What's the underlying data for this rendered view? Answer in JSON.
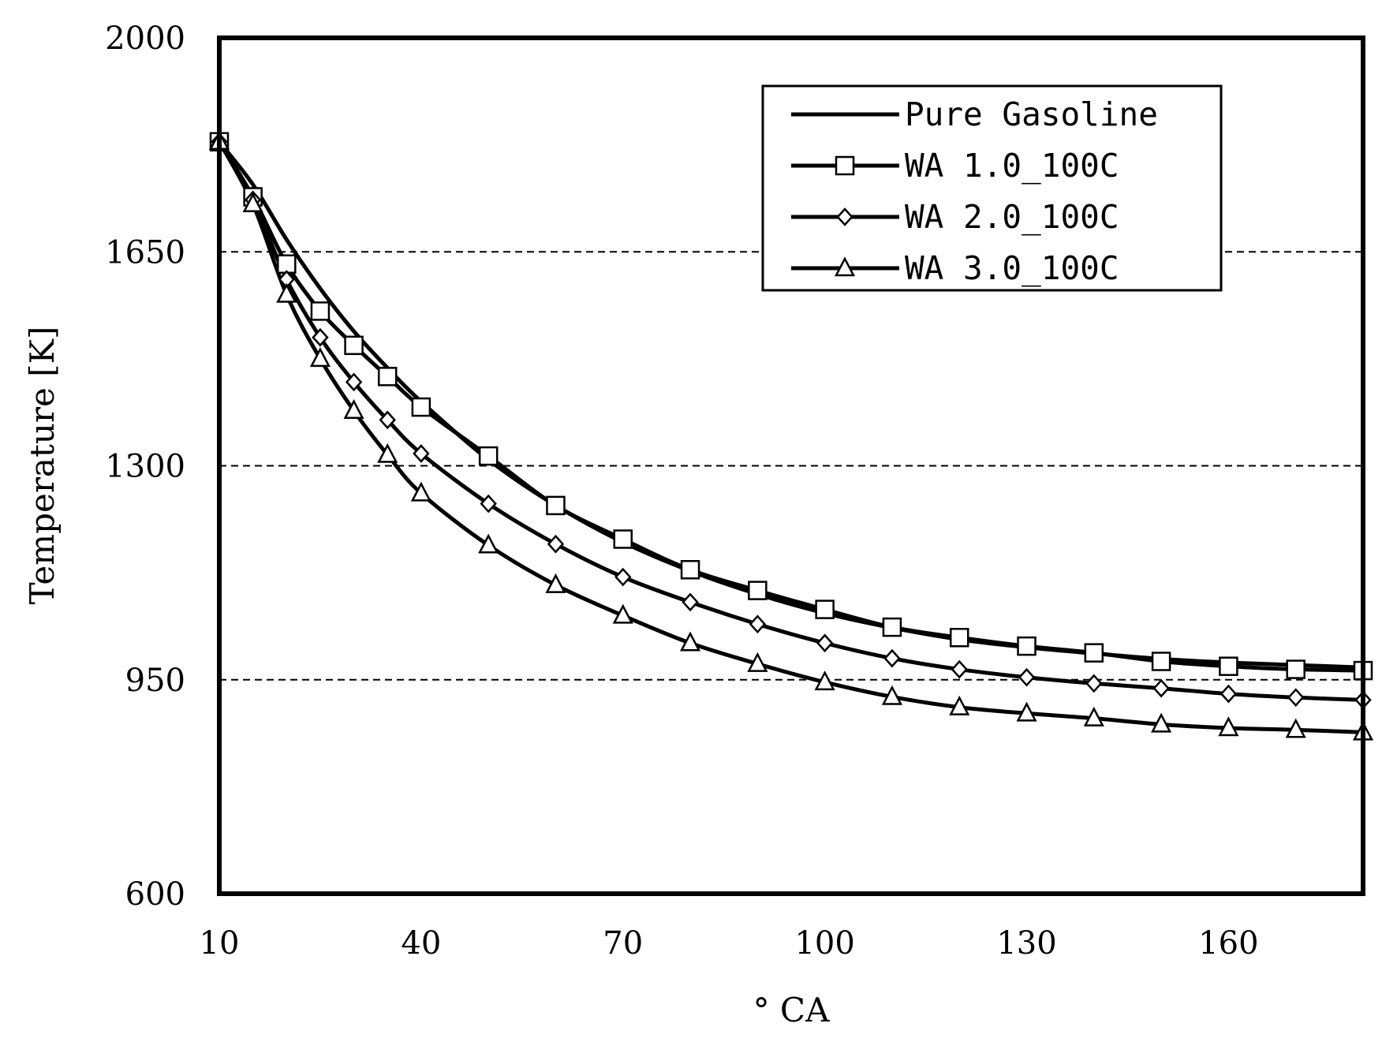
{
  "chart_data": {
    "type": "line",
    "xlabel": "° CA",
    "ylabel": "Temperature [K]",
    "xlim": [
      10,
      180
    ],
    "ylim": [
      600,
      2000
    ],
    "xticks": [
      10,
      40,
      70,
      100,
      130,
      160
    ],
    "yticks": [
      600,
      950,
      1300,
      1650,
      2000
    ],
    "grid": "horizontal dashed at 950, 1300, 1650",
    "legend_position": "top-right",
    "series": [
      {
        "name": "Pure Gasoline",
        "marker": "none",
        "x": [
          10,
          15,
          20,
          25,
          30,
          35,
          40,
          50,
          60,
          70,
          80,
          90,
          100,
          110,
          120,
          130,
          140,
          150,
          160,
          170,
          180
        ],
        "y": [
          1830,
          1760,
          1670,
          1590,
          1520,
          1460,
          1405,
          1310,
          1235,
          1175,
          1128,
          1090,
          1059,
          1035,
          1016,
          1003,
          993,
          984,
          978,
          974,
          970
        ]
      },
      {
        "name": "WA 1.0_100C",
        "marker": "square",
        "x": [
          10,
          15,
          20,
          25,
          30,
          35,
          40,
          50,
          60,
          70,
          80,
          90,
          100,
          110,
          120,
          130,
          140,
          150,
          160,
          170,
          180
        ],
        "y": [
          1830,
          1740,
          1630,
          1553,
          1497,
          1446,
          1396,
          1316,
          1235,
          1180,
          1130,
          1096,
          1065,
          1036,
          1019,
          1005,
          994,
          980,
          972,
          967,
          965
        ]
      },
      {
        "name": "WA 2.0_100C",
        "marker": "diamond",
        "x": [
          10,
          15,
          20,
          25,
          30,
          35,
          40,
          50,
          60,
          70,
          80,
          90,
          100,
          110,
          120,
          130,
          140,
          150,
          160,
          170,
          180
        ],
        "y": [
          1830,
          1735,
          1605,
          1510,
          1437,
          1375,
          1320,
          1238,
          1172,
          1118,
          1077,
          1041,
          1010,
          985,
          967,
          954,
          944,
          936,
          927,
          921,
          917
        ]
      },
      {
        "name": "WA 3.0_100C",
        "marker": "triangle",
        "x": [
          10,
          15,
          20,
          25,
          30,
          35,
          40,
          50,
          60,
          70,
          80,
          90,
          100,
          110,
          120,
          130,
          140,
          150,
          160,
          170,
          180
        ],
        "y": [
          1830,
          1728,
          1580,
          1475,
          1390,
          1318,
          1255,
          1170,
          1105,
          1055,
          1010,
          976,
          946,
          922,
          905,
          895,
          887,
          877,
          871,
          868,
          864
        ]
      }
    ]
  }
}
